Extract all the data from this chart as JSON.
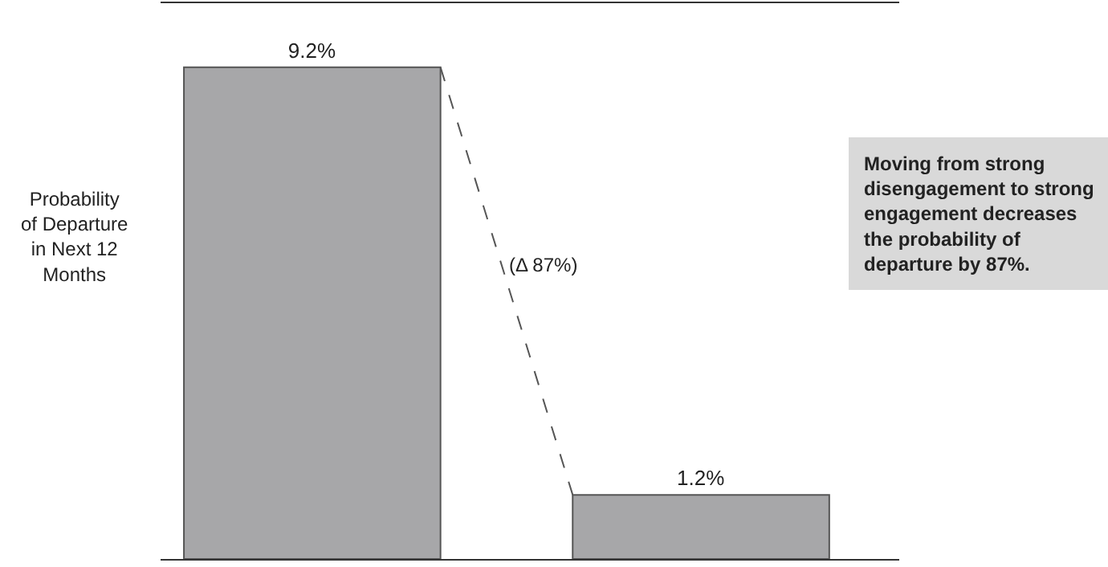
{
  "chart_data": {
    "type": "bar",
    "categories": [
      null,
      null
    ],
    "values": [
      9.2,
      1.2
    ],
    "color": "#a7a7a9",
    "value_labels": [
      "9.2%",
      "1.2%"
    ],
    "ylabel": "Probability of Departure in Next 12 Months",
    "ylim": [
      0,
      10.4
    ],
    "tick_labels": false,
    "legend": false,
    "annotations": [
      "(Δ 87%)",
      "Moving from strong disengagement to strong engagement decreases the probability of departure by 87%."
    ]
  }
}
